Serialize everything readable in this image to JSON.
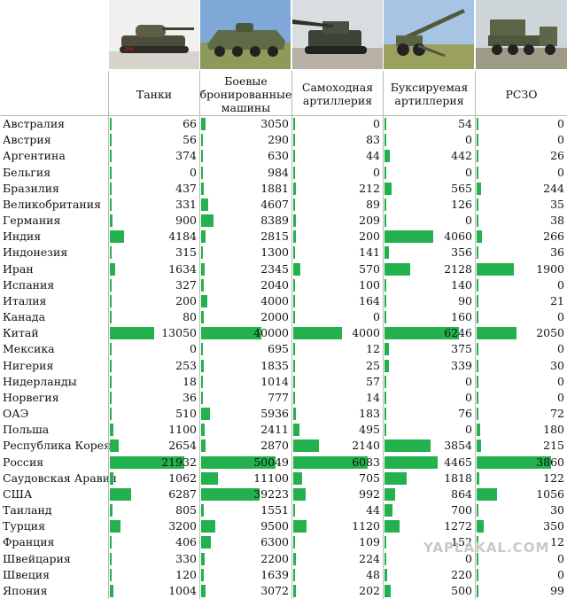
{
  "chart_data": {
    "type": "table",
    "columns": [
      {
        "name": "Танки",
        "max": 21932
      },
      {
        "name": "Боевые бронированные машины",
        "max": 50049
      },
      {
        "name": "Самоходная артиллерия",
        "max": 6083
      },
      {
        "name": "Буксируемая артиллерия",
        "max": 6246
      },
      {
        "name": "РСЗО",
        "max": 3860
      }
    ],
    "rows": [
      {
        "country": "Австралия",
        "values": [
          66,
          3050,
          0,
          54,
          0
        ]
      },
      {
        "country": "Австрия",
        "values": [
          56,
          290,
          83,
          0,
          0
        ]
      },
      {
        "country": "Аргентина",
        "values": [
          374,
          630,
          44,
          442,
          26
        ]
      },
      {
        "country": "Бельгия",
        "values": [
          0,
          984,
          0,
          0,
          0
        ]
      },
      {
        "country": "Бразилия",
        "values": [
          437,
          1881,
          212,
          565,
          244
        ]
      },
      {
        "country": "Великобритания",
        "values": [
          331,
          4607,
          89,
          126,
          35
        ]
      },
      {
        "country": "Германия",
        "values": [
          900,
          8389,
          209,
          0,
          38
        ]
      },
      {
        "country": "Индия",
        "values": [
          4184,
          2815,
          200,
          4060,
          266
        ]
      },
      {
        "country": "Индонезия",
        "values": [
          315,
          1300,
          141,
          356,
          36
        ]
      },
      {
        "country": "Иран",
        "values": [
          1634,
          2345,
          570,
          2128,
          1900
        ]
      },
      {
        "country": "Испания",
        "values": [
          327,
          2040,
          100,
          140,
          0
        ]
      },
      {
        "country": "Италия",
        "values": [
          200,
          4000,
          164,
          90,
          21
        ]
      },
      {
        "country": "Канада",
        "values": [
          80,
          2000,
          0,
          160,
          0
        ]
      },
      {
        "country": "Китай",
        "values": [
          13050,
          40000,
          4000,
          6246,
          2050
        ]
      },
      {
        "country": "Мексика",
        "values": [
          0,
          695,
          12,
          375,
          0
        ]
      },
      {
        "country": "Нигерия",
        "values": [
          253,
          1835,
          25,
          339,
          30
        ]
      },
      {
        "country": "Нидерланды",
        "values": [
          18,
          1014,
          57,
          0,
          0
        ]
      },
      {
        "country": "Норвегия",
        "values": [
          36,
          777,
          14,
          0,
          0
        ]
      },
      {
        "country": "ОАЭ",
        "values": [
          510,
          5936,
          183,
          76,
          72
        ]
      },
      {
        "country": "Польша",
        "values": [
          1100,
          2411,
          495,
          0,
          180
        ]
      },
      {
        "country": "Республика Корея",
        "values": [
          2654,
          2870,
          2140,
          3854,
          215
        ]
      },
      {
        "country": "Россия",
        "values": [
          21932,
          50049,
          6083,
          4465,
          3860
        ]
      },
      {
        "country": "Саудовская Аравия",
        "values": [
          1062,
          11100,
          705,
          1818,
          122
        ]
      },
      {
        "country": "США",
        "values": [
          6287,
          39223,
          992,
          864,
          1056
        ]
      },
      {
        "country": "Таиланд",
        "values": [
          805,
          1551,
          44,
          700,
          30
        ]
      },
      {
        "country": "Турция",
        "values": [
          3200,
          9500,
          1120,
          1272,
          350
        ]
      },
      {
        "country": "Франция",
        "values": [
          406,
          6300,
          109,
          152,
          12
        ]
      },
      {
        "country": "Швейцария",
        "values": [
          330,
          2200,
          224,
          0,
          0
        ]
      },
      {
        "country": "Швеция",
        "values": [
          120,
          1639,
          48,
          220,
          0
        ]
      },
      {
        "country": "Япония",
        "values": [
          1004,
          3072,
          202,
          500,
          99
        ]
      }
    ],
    "bar_color": "#22b14c"
  },
  "watermark": "YAPLAKAL.COM",
  "photo_icons": [
    "tank-photo-icon",
    "apc-photo-icon",
    "self-propelled-gun-photo-icon",
    "towed-howitzer-photo-icon",
    "mlrs-truck-photo-icon"
  ]
}
